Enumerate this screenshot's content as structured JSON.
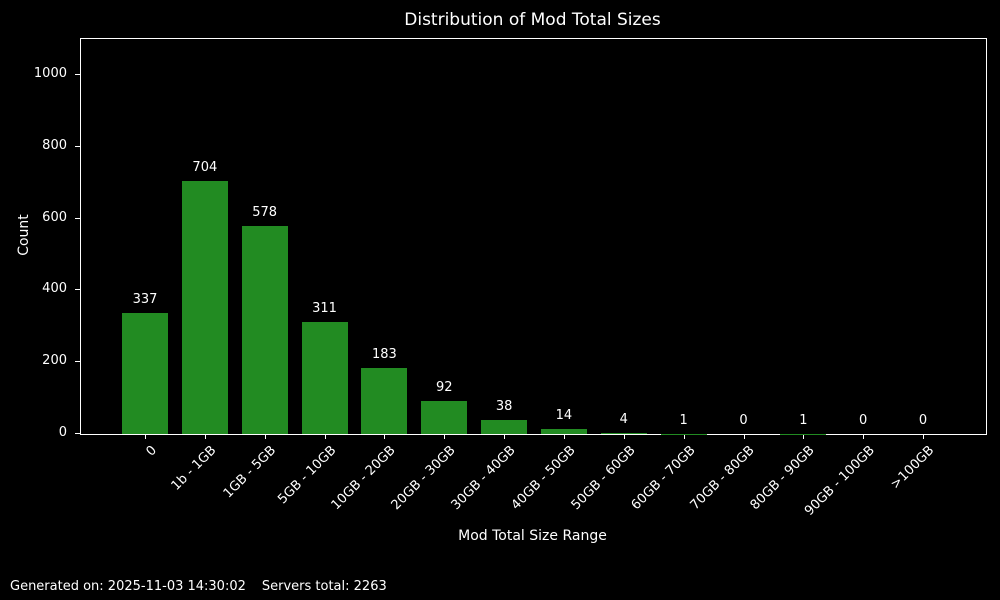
{
  "chart_data": {
    "type": "bar",
    "title": "Distribution of Mod Total Sizes",
    "xlabel": "Mod Total Size Range",
    "ylabel": "Count",
    "categories": [
      "0",
      "1b - 1GB",
      "1GB - 5GB",
      "5GB - 10GB",
      "10GB - 20GB",
      "20GB - 30GB",
      "30GB - 40GB",
      "40GB - 50GB",
      "50GB - 60GB",
      "60GB - 70GB",
      "70GB - 80GB",
      "80GB - 90GB",
      "90GB - 100GB",
      ">100GB"
    ],
    "values": [
      337,
      704,
      578,
      311,
      183,
      92,
      38,
      14,
      4,
      1,
      0,
      1,
      0,
      0
    ],
    "yticks": [
      0,
      200,
      400,
      600,
      800,
      1000
    ],
    "ylim": [
      0,
      1100
    ],
    "grid": false,
    "legend": null,
    "bar_color": "#228B22",
    "background_color": "#000000",
    "text_color": "#ffffff",
    "xtick_rotation_deg": 45
  },
  "footer": {
    "generated_on": "Generated on: 2025-11-03 14:30:02",
    "servers_total": "Servers total: 2263"
  }
}
